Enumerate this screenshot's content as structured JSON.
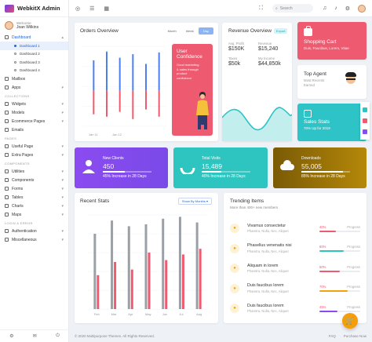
{
  "app": {
    "title": "WebkitX Admin"
  },
  "user": {
    "greeting": "Welcome",
    "name": "Joan Wilkins"
  },
  "sidebar": {
    "items": [
      {
        "label": "Dashboard",
        "icon": "home-icon"
      },
      {
        "label": "Mailbox",
        "icon": "mail-icon"
      },
      {
        "label": "Apps",
        "icon": "grid-icon"
      },
      {
        "label": "Widgets",
        "icon": "widget-icon"
      },
      {
        "label": "Models",
        "icon": "cube-icon"
      },
      {
        "label": "Ecommerce Pages",
        "icon": "cart-icon"
      },
      {
        "label": "Emails",
        "icon": "envelope-icon"
      },
      {
        "label": "Useful Page",
        "icon": "page-icon"
      },
      {
        "label": "Extra Pages",
        "icon": "page-icon"
      },
      {
        "label": "Utilities",
        "icon": "tool-icon"
      },
      {
        "label": "Components",
        "icon": "component-icon"
      },
      {
        "label": "Forms",
        "icon": "form-icon"
      },
      {
        "label": "Tables",
        "icon": "table-icon"
      },
      {
        "label": "Charts",
        "icon": "chart-icon"
      },
      {
        "label": "Maps",
        "icon": "map-icon"
      },
      {
        "label": "Authentication",
        "icon": "lock-icon"
      },
      {
        "label": "Miscellaneous",
        "icon": "misc-icon"
      }
    ],
    "subitems": [
      "Dashboard 1",
      "Dashboard 2",
      "Dashboard 3",
      "Dashboard 4"
    ],
    "sections": {
      "collections": "COLLECTIONS",
      "pages": "PAGES",
      "components": "COMPONENTS",
      "login": "LOGIN & ERROR"
    }
  },
  "topbar": {
    "search_placeholder": "Search"
  },
  "orders": {
    "title": "Orders Overview",
    "tabs": [
      "Month",
      "Week",
      "Day"
    ],
    "x_labels": [
      "Jan 11",
      "Jan 12"
    ],
    "blue_values": [
      68,
      88,
      74,
      82,
      60,
      86
    ],
    "red_values": [
      20,
      22,
      18,
      24,
      16,
      22
    ],
    "promo": {
      "title": "User Confidence",
      "text": "Good marketing & sales through product confidence"
    }
  },
  "revenue": {
    "title": "Revenue Overview",
    "badge": "Export",
    "stats": [
      {
        "label": "Avg. Profit",
        "value": "$150K"
      },
      {
        "label": "Revenue",
        "value": "$15,240"
      },
      {
        "label": "Taxes",
        "value": "$50k"
      },
      {
        "label": "My Income",
        "value": "$44,850k"
      }
    ]
  },
  "cart": {
    "title": "Shopping Cart",
    "subtitle": "Duis, Faucibus, Lorem, Vitae"
  },
  "agent": {
    "title": "Top Agent",
    "subtitle": "Most Recents Earned"
  },
  "stats": {
    "title": "Sales Stats",
    "subtitle": "70% Up for 2019"
  },
  "metrics": [
    {
      "title": "New Clients",
      "value": "450",
      "footer": "45% Increase in 28 Days",
      "progress": 0.45
    },
    {
      "title": "Total Visits",
      "value": "15,489",
      "footer": "40% Increase in 28 Days",
      "progress": 0.4
    },
    {
      "title": "Downloads",
      "value": "55,005",
      "footer": "85% Increase in 28 Days",
      "progress": 0.85
    }
  ],
  "recent": {
    "title": "Recent Stats",
    "dropdown": "Show By Months",
    "months": [
      "Feb",
      "Mar",
      "Apr",
      "May",
      "Jun",
      "Jul",
      "Aug"
    ],
    "gray_values": [
      80,
      94,
      88,
      90,
      96,
      98,
      92
    ],
    "red_values": [
      36,
      50,
      42,
      60,
      52,
      58,
      64
    ]
  },
  "trending": {
    "title": "Trending Items",
    "subtitle": "More than 400+ new members",
    "items": [
      {
        "name": "Vivamus consectetur",
        "desc": "Pharetra, Nulla, Nec, Aliquet",
        "pct": "40%",
        "label": "Progress",
        "progress": 0.4,
        "color": "#ee5a6f"
      },
      {
        "name": "Phasellus venenatis nisi",
        "desc": "Pharetra, Nulla, Nec, Aliquet",
        "pct": "60%",
        "label": "Progress",
        "progress": 0.6,
        "color": "#2ec4bf"
      },
      {
        "name": "Aliquam in lorem",
        "desc": "Pharetra, Nulla, Nec, Aliquet",
        "pct": "50%",
        "label": "Progress",
        "progress": 0.5,
        "color": "#ee5a6f"
      },
      {
        "name": "Duis faucibus lorem",
        "desc": "Pharetra, Nulla, Nec, Aliquet",
        "pct": "70%",
        "label": "Progress",
        "progress": 0.7,
        "color": "#f0a30a"
      },
      {
        "name": "Duis faucibus lorem",
        "desc": "Pharetra, Nulla, Nec, Aliquet",
        "pct": "45%",
        "label": "Progress",
        "progress": 0.45,
        "color": "#8b4bf0"
      }
    ]
  },
  "footer": {
    "copyright": "© 2020 Multipurpose Themes. All Rights Reserved.",
    "links": [
      "FAQ",
      "Purchase Now"
    ]
  }
}
